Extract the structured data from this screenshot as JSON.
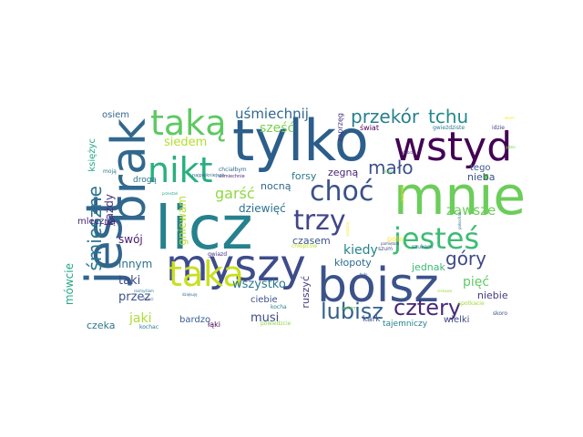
{
  "wordcloud": {
    "words": [
      {
        "text": "tylko",
        "color": "#2c5e8b"
      },
      {
        "text": "licz",
        "color": "#26818e"
      },
      {
        "text": "mnie",
        "color": "#6ccd5a"
      },
      {
        "text": "boisz",
        "color": "#3b528b"
      },
      {
        "text": "myszy",
        "color": "#3e4c8a"
      },
      {
        "text": "wstyd",
        "color": "#440154"
      },
      {
        "text": "brak",
        "color": "#31688e"
      },
      {
        "text": "jest",
        "color": "#32658e"
      },
      {
        "text": "taką",
        "color": "#5ec962"
      },
      {
        "text": "taka",
        "color": "#c8e020"
      },
      {
        "text": "nikt",
        "color": "#29af7f"
      },
      {
        "text": "choć",
        "color": "#3b518b"
      },
      {
        "text": "jesteś",
        "color": "#3dbc74"
      },
      {
        "text": "trzy",
        "color": "#404688"
      },
      {
        "text": "lubisz",
        "color": "#33628d"
      },
      {
        "text": "cztery",
        "color": "#482878"
      },
      {
        "text": "przekór",
        "color": "#27808e"
      },
      {
        "text": "tchu",
        "color": "#23898e"
      },
      {
        "text": "mało",
        "color": "#3b528b"
      },
      {
        "text": "góry",
        "color": "#3f4889"
      },
      {
        "text": "śmieszne",
        "color": "#2b758e"
      },
      {
        "text": "garść",
        "color": "#90d743"
      },
      {
        "text": "uśmiechnij",
        "color": "#31688e"
      },
      {
        "text": "zawsze",
        "color": "#6ccd5a"
      },
      {
        "text": "sześć",
        "color": "#7ad151"
      },
      {
        "text": "siedem",
        "color": "#b5de2b"
      },
      {
        "text": "kiedy",
        "color": "#25848e"
      },
      {
        "text": "pięć",
        "color": "#5ec962"
      },
      {
        "text": "wszystko",
        "color": "#2a788e"
      },
      {
        "text": "jaki",
        "color": "#addc30"
      },
      {
        "text": "taki",
        "color": "#3e4a89"
      },
      {
        "text": "przez",
        "color": "#3b528b"
      },
      {
        "text": "innym",
        "color": "#2c728e"
      },
      {
        "text": "musi",
        "color": "#3e4989"
      },
      {
        "text": "mówcie",
        "color": "#22a884"
      },
      {
        "text": "dziewięć",
        "color": "#2d708e"
      },
      {
        "text": "czasem",
        "color": "#3b528b"
      },
      {
        "text": "forsy",
        "color": "#2a788e"
      },
      {
        "text": "zegną",
        "color": "#482475"
      },
      {
        "text": "nocną",
        "color": "#33638d"
      },
      {
        "text": "każdy",
        "color": "#46327e"
      },
      {
        "text": "swój",
        "color": "#481a6c"
      },
      {
        "text": "gniewam",
        "color": "#b8de29"
      },
      {
        "text": "ruszyć",
        "color": "#443983"
      },
      {
        "text": "kłopoty",
        "color": "#2f6c8e"
      },
      {
        "text": "jednak",
        "color": "#3aba76"
      },
      {
        "text": "nieba",
        "color": "#3b528b"
      },
      {
        "text": "niebie",
        "color": "#443a83"
      },
      {
        "text": "tego",
        "color": "#38598c"
      },
      {
        "text": "czeka",
        "color": "#2a778e"
      },
      {
        "text": "bardzo",
        "color": "#365c8d"
      },
      {
        "text": "ciebie",
        "color": "#3b528b"
      },
      {
        "text": "kark",
        "color": "#3b528b"
      },
      {
        "text": "tajemniczy",
        "color": "#26828e"
      },
      {
        "text": "wielki",
        "color": "#3e4a89"
      },
      {
        "text": "osiem",
        "color": "#31688e"
      },
      {
        "text": "księżyc",
        "color": "#22a884"
      },
      {
        "text": "mleczną",
        "color": "#482576"
      },
      {
        "text": "drogą",
        "color": "#2c728e"
      },
      {
        "text": "zaprzęg",
        "color": "#46337e"
      },
      {
        "text": "świat",
        "color": "#440154"
      },
      {
        "text": "pola",
        "color": "#fde725"
      },
      {
        "text": "łąki",
        "color": "#440154"
      },
      {
        "text": "moją",
        "color": "#2a788e"
      },
      {
        "text": "chciałbym",
        "color": "#31688e"
      },
      {
        "text": "gwiazd",
        "color": "#46327e"
      },
      {
        "text": "chłopców",
        "color": "#c2df23"
      },
      {
        "text": "szukam",
        "color": "#2a788e"
      },
      {
        "text": "szum",
        "color": "#3b528b"
      },
      {
        "text": "gwieździste",
        "color": "#2a788e"
      },
      {
        "text": "idzie",
        "color": "#414487"
      },
      {
        "text": "spotkacie",
        "color": "#a0da39"
      },
      {
        "text": "skoro",
        "color": "#3b528b"
      },
      {
        "text": "kochac",
        "color": "#2a788e"
      },
      {
        "text": "kocha",
        "color": "#26818e"
      },
      {
        "text": "powiedzcie",
        "color": "#8fd744"
      },
      {
        "text": "jestem",
        "color": "#6ccd5a"
      },
      {
        "text": "najpiękniejsze",
        "color": "#31688e"
      },
      {
        "text": "uśmiechnie",
        "color": "#482878"
      },
      {
        "text": "więc",
        "color": "#5ec962"
      },
      {
        "text": "wiem",
        "color": "#fde725"
      },
      {
        "text": "dzieci",
        "color": "#3b528b"
      },
      {
        "text": "przecież",
        "color": "#fde725"
      },
      {
        "text": "zostanę",
        "color": "#fde725"
      },
      {
        "text": "rozmyślam",
        "color": "#2a788e"
      },
      {
        "text": "dziękuję",
        "color": "#31688e"
      },
      {
        "text": "pamiętam",
        "color": "#414487"
      },
      {
        "text": "ciekawe",
        "color": "#a0da39"
      },
      {
        "text": "przestań",
        "color": "#22a884"
      },
      {
        "text": "gdzie",
        "color": "#7ad151"
      },
      {
        "text": "było",
        "color": "#3b528b"
      },
      {
        "text": "dobrze",
        "color": "#46327e"
      },
      {
        "text": "pokochać",
        "color": "#2a788e"
      }
    ]
  }
}
